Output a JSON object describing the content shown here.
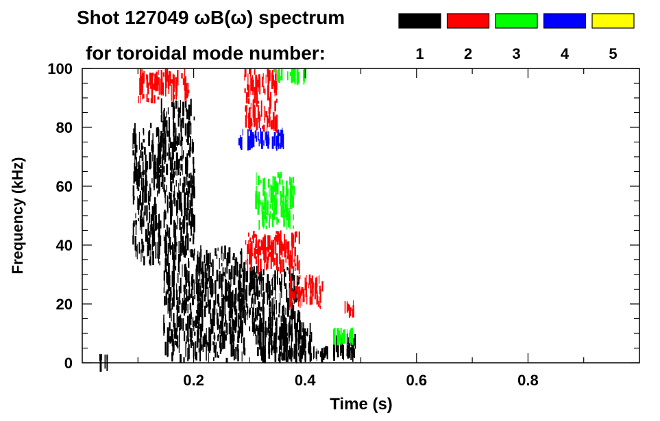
{
  "chart_data": {
    "type": "heatmap",
    "title_line1": "Shot 127049 ωB(ω) spectrum",
    "title_line2": "for toroidal mode number:",
    "xlabel": "Time (s)",
    "ylabel": "Frequency (kHz)",
    "xlim": [
      0.0,
      1.0
    ],
    "ylim": [
      0,
      100
    ],
    "x_ticks": [
      0.2,
      0.4,
      0.6,
      0.8
    ],
    "x_tick_labels": [
      "0.2",
      "0.4",
      "0.6",
      "0.8"
    ],
    "y_ticks": [
      0,
      20,
      40,
      60,
      80,
      100
    ],
    "y_tick_labels": [
      "0",
      "20",
      "40",
      "60",
      "80",
      "100"
    ],
    "legend": [
      {
        "label": "1",
        "color": "#000000"
      },
      {
        "label": "2",
        "color": "#ff0000"
      },
      {
        "label": "3",
        "color": "#00ff00"
      },
      {
        "label": "4",
        "color": "#0000ff"
      },
      {
        "label": "5",
        "color": "#ffff00"
      }
    ],
    "features": [
      {
        "mode": 1,
        "t0": 0.09,
        "t1": 0.14,
        "f0": 33,
        "f1": 82
      },
      {
        "mode": 1,
        "t0": 0.14,
        "t1": 0.2,
        "f0": 55,
        "f1": 90
      },
      {
        "mode": 1,
        "t0": 0.145,
        "t1": 0.2,
        "f0": 0,
        "f1": 60
      },
      {
        "mode": 1,
        "t0": 0.2,
        "t1": 0.29,
        "f0": 0,
        "f1": 40
      },
      {
        "mode": 1,
        "t0": 0.28,
        "t1": 0.39,
        "f0": 8,
        "f1": 33
      },
      {
        "mode": 1,
        "t0": 0.31,
        "t1": 0.41,
        "f0": 2,
        "f1": 14
      },
      {
        "mode": 1,
        "t0": 0.32,
        "t1": 0.44,
        "f0": 0,
        "f1": 6
      },
      {
        "mode": 1,
        "t0": 0.03,
        "t1": 0.05,
        "f0": 1,
        "f1": 3
      },
      {
        "mode": 1,
        "t0": 0.45,
        "t1": 0.49,
        "f0": 0,
        "f1": 10
      },
      {
        "mode": 2,
        "t0": 0.1,
        "t1": 0.19,
        "f0": 88,
        "f1": 100
      },
      {
        "mode": 2,
        "t0": 0.29,
        "t1": 0.35,
        "f0": 78,
        "f1": 100
      },
      {
        "mode": 2,
        "t0": 0.29,
        "t1": 0.39,
        "f0": 30,
        "f1": 45
      },
      {
        "mode": 2,
        "t0": 0.37,
        "t1": 0.43,
        "f0": 18,
        "f1": 30
      },
      {
        "mode": 2,
        "t0": 0.47,
        "t1": 0.49,
        "f0": 15,
        "f1": 22
      },
      {
        "mode": 3,
        "t0": 0.31,
        "t1": 0.38,
        "f0": 45,
        "f1": 65
      },
      {
        "mode": 3,
        "t0": 0.34,
        "t1": 0.4,
        "f0": 95,
        "f1": 100
      },
      {
        "mode": 3,
        "t0": 0.45,
        "t1": 0.49,
        "f0": 6,
        "f1": 12
      },
      {
        "mode": 4,
        "t0": 0.28,
        "t1": 0.36,
        "f0": 72,
        "f1": 80
      }
    ]
  }
}
